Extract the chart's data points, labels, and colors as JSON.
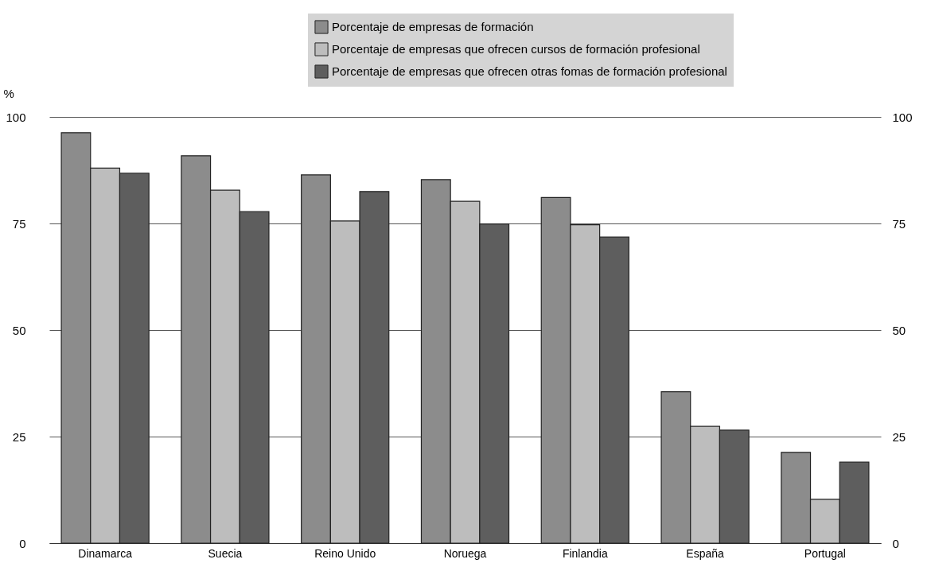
{
  "chart_data": {
    "type": "bar",
    "ylabel": "%",
    "categories": [
      "Dinamarca",
      "Suecia",
      "Reino Unido",
      "Noruega",
      "Finlandia",
      "España",
      "Portugal"
    ],
    "series": [
      {
        "name": "Porcentaje de empresas de formación",
        "color": "#8c8c8c",
        "values": [
          96.3,
          90.9,
          86.4,
          85.3,
          81.1,
          35.5,
          21.3
        ]
      },
      {
        "name": "Porcentaje de empresas que ofrecen cursos de formación profesional",
        "color": "#bdbdbd",
        "values": [
          88.0,
          82.8,
          75.6,
          80.2,
          74.7,
          27.4,
          10.3
        ]
      },
      {
        "name": "Porcentaje de empresas que ofrecen otras fomas de formación profesional",
        "color": "#5e5e5e",
        "values": [
          86.8,
          77.8,
          82.5,
          74.9,
          71.8,
          26.5,
          19.0
        ]
      }
    ],
    "ylim": [
      0,
      100
    ],
    "yticks": [
      0,
      25,
      50,
      75,
      100
    ],
    "y2lim": [
      0,
      100
    ],
    "y2ticks": [
      0,
      25,
      50,
      75,
      100
    ],
    "grid": "y",
    "legend": "top"
  }
}
